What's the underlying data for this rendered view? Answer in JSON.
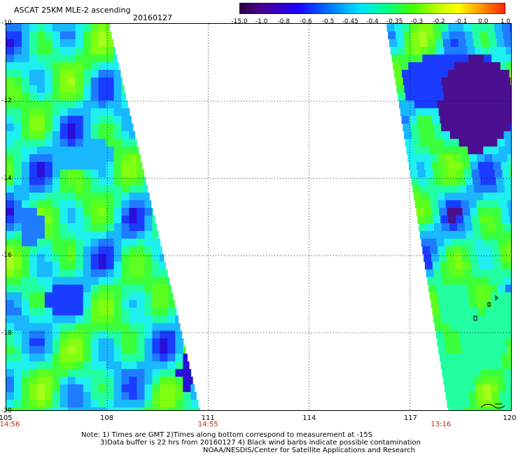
{
  "header": {
    "title": "ASCAT 25KM MLE-2 ascending",
    "date": "20160127"
  },
  "colorbar": {
    "labels": [
      "-15.0",
      "-1.0",
      "-0.8",
      "-0.6",
      "-0.5",
      "-0.45",
      "-0.4",
      "-0.35",
      "-0.3",
      "-0.2",
      "-0.1",
      "0.0",
      "1.0"
    ],
    "colors": [
      "#3a0050",
      "#4d00a0",
      "#2a00c8",
      "#0010ff",
      "#0060ff",
      "#00b0ff",
      "#00ffff",
      "#00ff80",
      "#40ff00",
      "#a0ff00",
      "#ffff00",
      "#ff8000",
      "#ff3000"
    ]
  },
  "axes": {
    "x_ticks": [
      "105",
      "108",
      "111",
      "114",
      "117",
      "120"
    ],
    "y_ticks": [
      "-10",
      "-12",
      "-14",
      "-16",
      "-18",
      "-20"
    ]
  },
  "swath_times": [
    {
      "lon": "105",
      "time": "14:56"
    },
    {
      "lon": "111",
      "time": "14:55"
    },
    {
      "lon": "117.9",
      "time": "13:16"
    }
  ],
  "notes": {
    "line1": "Note: 1) Times are GMT 2)Times along bottom correspond to measurement at -15S",
    "line2": "3)Data buffer is 22 hrs from 20160127 4) Black wind barbs indicate possible contamination",
    "line3": "NOAA/NESDIS/Center for Satellite Applications and Research"
  }
}
